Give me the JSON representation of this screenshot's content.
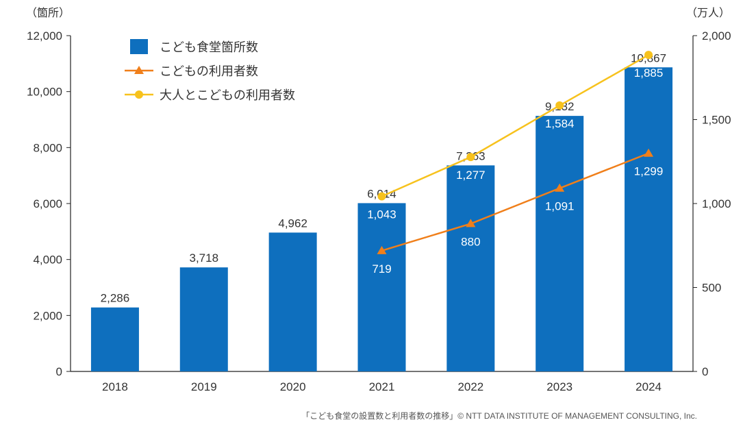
{
  "chart_data": {
    "type": "bar",
    "categories": [
      "2018",
      "2019",
      "2020",
      "2021",
      "2022",
      "2023",
      "2024"
    ],
    "left_axis": {
      "unit": "（箇所）",
      "ylim": [
        0,
        12000
      ],
      "ticks": [
        "0",
        "2,000",
        "4,000",
        "6,000",
        "8,000",
        "10,000",
        "12,000"
      ]
    },
    "right_axis": {
      "unit": "（万人）",
      "ylim": [
        0,
        2000
      ],
      "ticks": [
        "0",
        "500",
        "1,000",
        "1,500",
        "2,000"
      ]
    },
    "series": [
      {
        "name": "こども食堂箇所数",
        "type": "bar",
        "axis": "left",
        "color": "#0e6fbe",
        "values": [
          2286,
          3718,
          4962,
          6014,
          7363,
          9132,
          10867
        ],
        "labels": [
          "2,286",
          "3,718",
          "4,962",
          "6,014",
          "7,363",
          "9,132",
          "10,867"
        ]
      },
      {
        "name": "こどもの利用者数",
        "type": "line",
        "axis": "right",
        "color": "#f07f1a",
        "marker": "triangle",
        "values": [
          null,
          null,
          null,
          719,
          880,
          1091,
          1299
        ],
        "labels": [
          null,
          null,
          null,
          "719",
          "880",
          "1,091",
          "1,299"
        ]
      },
      {
        "name": "大人とこどもの利用者数",
        "type": "line",
        "axis": "right",
        "color": "#f7c21d",
        "marker": "circle",
        "values": [
          null,
          null,
          null,
          1043,
          1277,
          1584,
          1885
        ],
        "labels": [
          null,
          null,
          null,
          "1,043",
          "1,277",
          "1,584",
          "1,885"
        ]
      }
    ],
    "grid": false,
    "legend_position": "top-left"
  },
  "footer": "「こども食堂の設置数と利用者数の推移」© NTT DATA INSTITUTE OF MANAGEMENT CONSULTING, Inc."
}
